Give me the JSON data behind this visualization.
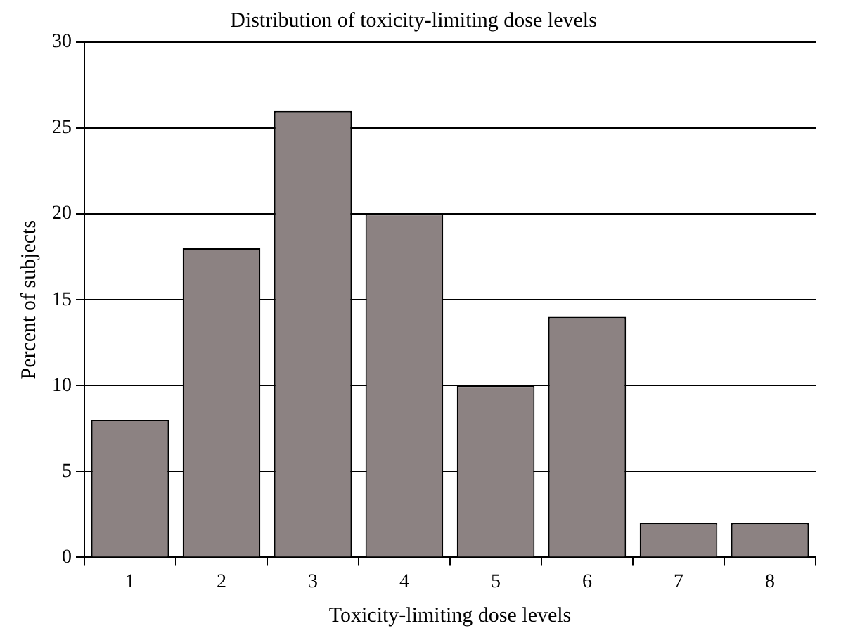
{
  "chart_data": {
    "type": "bar",
    "title": "Distribution of toxicity-limiting dose levels",
    "xlabel": "Toxicity-limiting dose levels",
    "ylabel": "Percent of subjects",
    "categories": [
      "1",
      "2",
      "3",
      "4",
      "5",
      "6",
      "7",
      "8"
    ],
    "values": [
      8,
      18,
      26,
      20,
      10,
      14,
      2,
      2
    ],
    "color": "#8c8282",
    "ylim": [
      0,
      30
    ],
    "yticks": [
      0,
      5,
      10,
      15,
      20,
      25,
      30
    ],
    "grid": "y",
    "legend": false
  }
}
